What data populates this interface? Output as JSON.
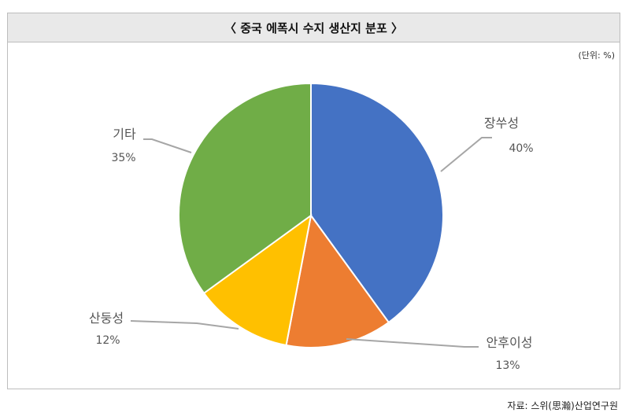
{
  "header": {
    "title": "〈 중국 에폭시 수지 생산지 분포 〉"
  },
  "unit": "(단위: %)",
  "source": "자료: 스위(思瀚)산업연구원",
  "chart_data": {
    "type": "pie",
    "title": "〈 중국 에폭시 수지 생산지 분포 〉",
    "unit": "%",
    "slices": [
      {
        "label": "장쑤성",
        "value": 40,
        "value_label": "40%",
        "color": "#4472c4"
      },
      {
        "label": "안후이성",
        "value": 13,
        "value_label": "13%",
        "color": "#ed7d31"
      },
      {
        "label": "산둥성",
        "value": 12,
        "value_label": "12%",
        "color": "#ffc000"
      },
      {
        "label": "기타",
        "value": 35,
        "value_label": "35%",
        "color": "#70ad47"
      }
    ]
  }
}
